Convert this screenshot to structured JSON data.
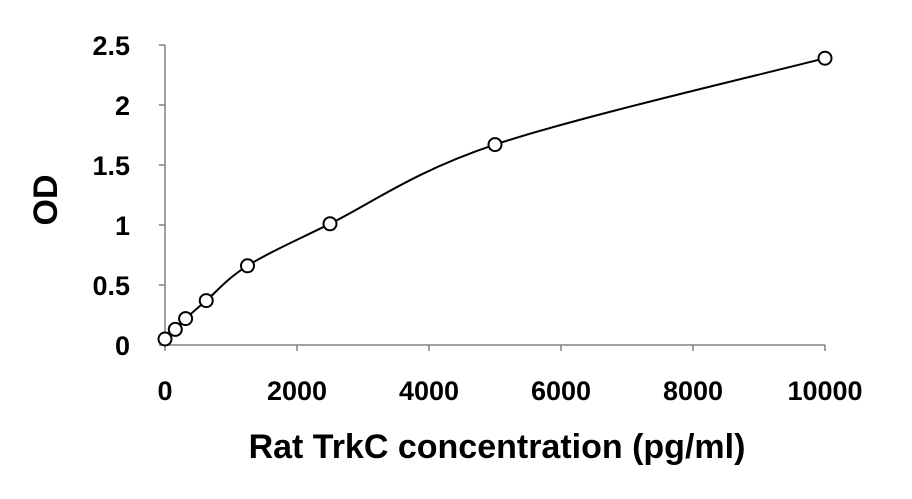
{
  "chart_data": {
    "type": "scatter",
    "title": "",
    "xlabel": "Rat TrkC concentration (pg/ml)",
    "ylabel": "OD",
    "xlim": [
      0,
      10000
    ],
    "ylim": [
      0,
      2.5
    ],
    "x_ticks": [
      "0",
      "2000",
      "4000",
      "6000",
      "8000",
      "10000"
    ],
    "y_ticks": [
      "0",
      "0.5",
      "1",
      "1.5",
      "2",
      "2.5"
    ],
    "grid": false,
    "legend": "none",
    "series": [
      {
        "x": [
          0,
          156,
          312,
          625,
          1250,
          2500,
          5000,
          10000
        ],
        "y": [
          0.05,
          0.13,
          0.22,
          0.37,
          0.66,
          1.01,
          1.67,
          2.39
        ],
        "marker": "open-circle",
        "trendline": "smooth"
      }
    ],
    "colors": {
      "mark": "#000000"
    }
  }
}
